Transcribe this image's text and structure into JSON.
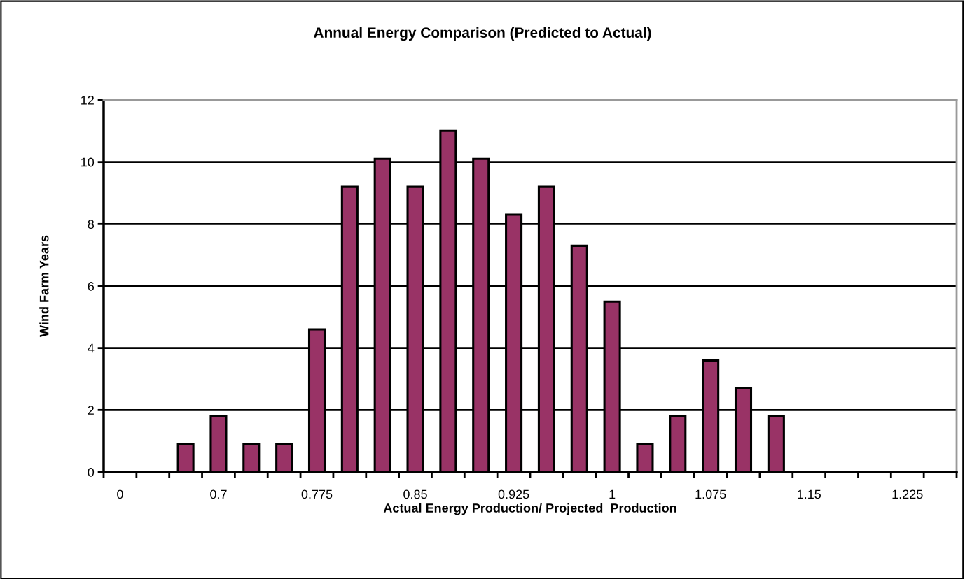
{
  "chart_data": {
    "type": "bar",
    "title": "Annual Energy Comparison (Predicted to Actual)",
    "xlabel": "Actual Energy Production/ Projected  Production",
    "ylabel": "Wind Farm Years",
    "categories": [
      "0",
      null,
      null,
      "0.7",
      null,
      null,
      "0.775",
      null,
      null,
      "0.85",
      null,
      null,
      "0.925",
      null,
      null,
      "1",
      null,
      null,
      "1.075",
      null,
      null,
      "1.15",
      null,
      null,
      "1.225",
      null
    ],
    "values": [
      0,
      0,
      0.9,
      1.8,
      0.9,
      0.9,
      4.6,
      9.2,
      10.1,
      9.2,
      11,
      10.1,
      8.3,
      9.2,
      7.3,
      5.5,
      0.9,
      1.8,
      3.6,
      2.7,
      1.8,
      0,
      0,
      0,
      0,
      0
    ],
    "color": "#993366",
    "ylim": [
      0,
      12
    ],
    "yticks": [
      0,
      2,
      4,
      6,
      8,
      10,
      12
    ],
    "grid": "y"
  }
}
